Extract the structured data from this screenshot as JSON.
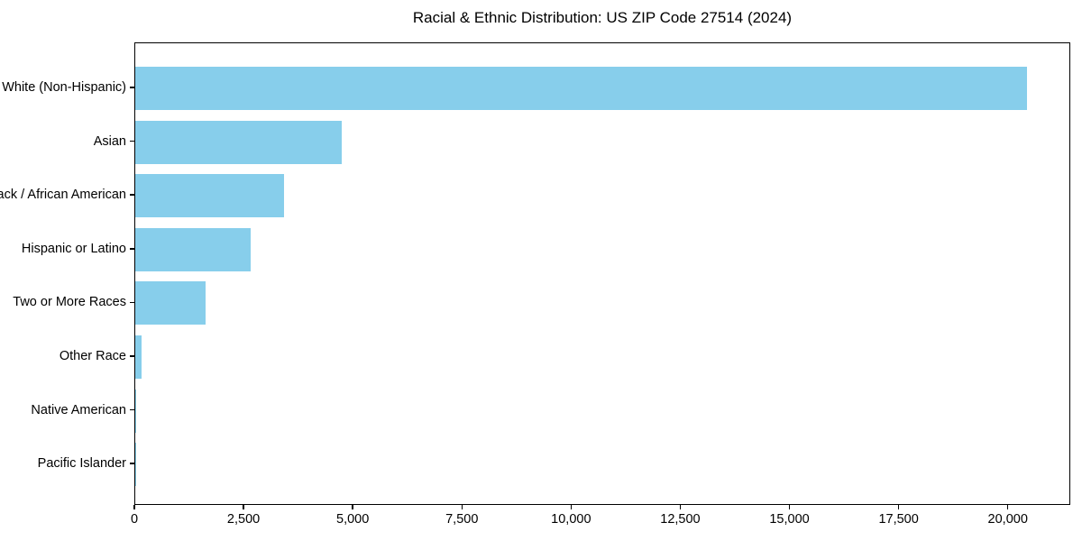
{
  "chart_data": {
    "type": "bar",
    "orientation": "horizontal",
    "title": "Racial & Ethnic Distribution: US ZIP Code 27514 (2024)",
    "categories": [
      "White (Non-Hispanic)",
      "Asian",
      "Black / African American",
      "Hispanic or Latino",
      "Two or More Races",
      "Other Race",
      "Native American",
      "Pacific Islander"
    ],
    "values": [
      20412,
      4731,
      3409,
      2645,
      1612,
      145,
      30,
      12
    ],
    "xlabel": "",
    "ylabel": "",
    "xlim": [
      0,
      21430
    ],
    "xticks": [
      0,
      2500,
      5000,
      7500,
      10000,
      12500,
      15000,
      17500,
      20000
    ],
    "xtick_labels": [
      "0",
      "2,500",
      "5,000",
      "7,500",
      "10,000",
      "12,500",
      "15,000",
      "17,500",
      "20,000"
    ],
    "bar_color": "#87CEEB",
    "background_color": "#ffffff",
    "axis_color": "#000000",
    "grid": false,
    "legend": null
  }
}
